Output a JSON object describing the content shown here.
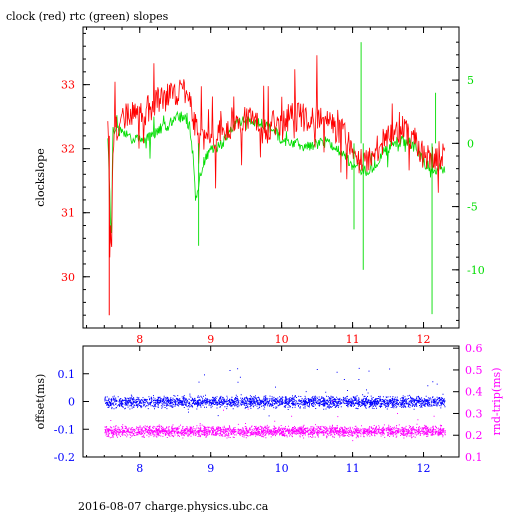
{
  "title": "clock (red) rtc (green) slopes",
  "footer": "2016-08-07 charge.physics.ubc.ca",
  "colors": {
    "red": "#ff0000",
    "green": "#00dd00",
    "blue": "#0000ff",
    "magenta": "#ff00ff",
    "axis": "#000000"
  },
  "chart_data": [
    {
      "type": "line",
      "ylabel": "clockslope",
      "xlim": [
        7.2,
        12.5
      ],
      "ylim_left": [
        29.2,
        33.9
      ],
      "ylim_right": [
        -14.6,
        9.2
      ],
      "xticks": [
        8,
        9,
        10,
        11,
        12
      ],
      "yticks_left": [
        "30",
        "31",
        "32",
        "33"
      ],
      "yticks_right": [
        "-10",
        "-5",
        "0",
        "5"
      ],
      "series": [
        {
          "color": "red",
          "axis": "left",
          "x": [
            7.55,
            7.6,
            7.62,
            7.65,
            7.7,
            7.8,
            7.9,
            8.0,
            8.1,
            8.2,
            8.3,
            8.4,
            8.5,
            8.6,
            8.7,
            8.8,
            8.9,
            9.0,
            9.1,
            9.2,
            9.3,
            9.4,
            9.5,
            9.6,
            9.7,
            9.8,
            9.9,
            10.0,
            10.1,
            10.2,
            10.3,
            10.4,
            10.5,
            10.6,
            10.7,
            10.8,
            10.9,
            11.0,
            11.1,
            11.2,
            11.3,
            11.4,
            11.5,
            11.6,
            11.7,
            11.8,
            11.9,
            12.0,
            12.1,
            12.2,
            12.3
          ],
          "y": [
            32.3,
            30.2,
            32.1,
            32.4,
            32.3,
            32.5,
            32.6,
            32.5,
            32.6,
            32.7,
            32.8,
            32.8,
            32.9,
            32.9,
            32.8,
            32.3,
            32.2,
            32.1,
            32.2,
            32.3,
            32.4,
            32.4,
            32.5,
            32.4,
            32.3,
            32.3,
            32.4,
            32.4,
            32.5,
            32.5,
            32.5,
            32.4,
            32.5,
            32.5,
            32.4,
            32.3,
            32.2,
            31.9,
            31.8,
            31.8,
            31.9,
            32.1,
            32.2,
            32.2,
            32.3,
            32.2,
            32.1,
            31.9,
            31.8,
            31.9,
            31.9
          ]
        },
        {
          "color": "green",
          "axis": "right",
          "x": [
            7.55,
            7.6,
            7.62,
            7.65,
            7.7,
            7.8,
            7.9,
            8.0,
            8.1,
            8.2,
            8.3,
            8.4,
            8.5,
            8.6,
            8.7,
            8.8,
            8.9,
            9.0,
            9.1,
            9.2,
            9.3,
            9.4,
            9.5,
            9.6,
            9.7,
            9.8,
            9.9,
            10.0,
            10.1,
            10.2,
            10.3,
            10.4,
            10.5,
            10.6,
            10.7,
            10.8,
            10.9,
            11.0,
            11.1,
            11.2,
            11.3,
            11.4,
            11.5,
            11.6,
            11.7,
            11.8,
            11.9,
            12.0,
            12.1,
            12.2,
            12.3
          ],
          "y": [
            0.5,
            -8.0,
            1.0,
            1.2,
            1.0,
            0.8,
            0.3,
            0.2,
            0.4,
            0.8,
            1.2,
            1.4,
            2.0,
            2.1,
            1.5,
            -4.0,
            -1.5,
            -0.6,
            -0.3,
            0.2,
            1.2,
            1.6,
            1.8,
            1.6,
            1.6,
            1.4,
            1.0,
            0.2,
            0.1,
            0.0,
            -0.2,
            -0.2,
            0.0,
            0.1,
            0.0,
            -0.5,
            -1.0,
            -1.8,
            -2.0,
            -2.2,
            -1.8,
            -1.0,
            -0.4,
            0.0,
            0.2,
            0.0,
            -0.4,
            -1.5,
            -2.0,
            -2.0,
            -2.2
          ]
        }
      ]
    },
    {
      "type": "scatter",
      "ylabel": "offset(ms)",
      "ylabel_right": "rnd-trip(ms)",
      "xlim": [
        7.2,
        12.5
      ],
      "ylim_left": [
        -0.2,
        0.2
      ],
      "ylim_right": [
        0.1,
        0.61
      ],
      "xticks": [
        8,
        9,
        10,
        11,
        12
      ],
      "yticks_left": [
        "0.1",
        "0",
        "-0.1",
        "-0.2"
      ],
      "yticks_right": [
        "0.1",
        "0.2",
        "0.3",
        "0.4",
        "0.5",
        "0.6"
      ],
      "series": [
        {
          "color": "blue",
          "axis": "left",
          "x_range": [
            7.5,
            12.3
          ],
          "y_center": 0.0,
          "y_spread": 0.03
        },
        {
          "color": "magenta",
          "axis": "right",
          "x_range": [
            7.5,
            12.3
          ],
          "y_center": 0.22,
          "y_spread": 0.035
        }
      ]
    }
  ]
}
